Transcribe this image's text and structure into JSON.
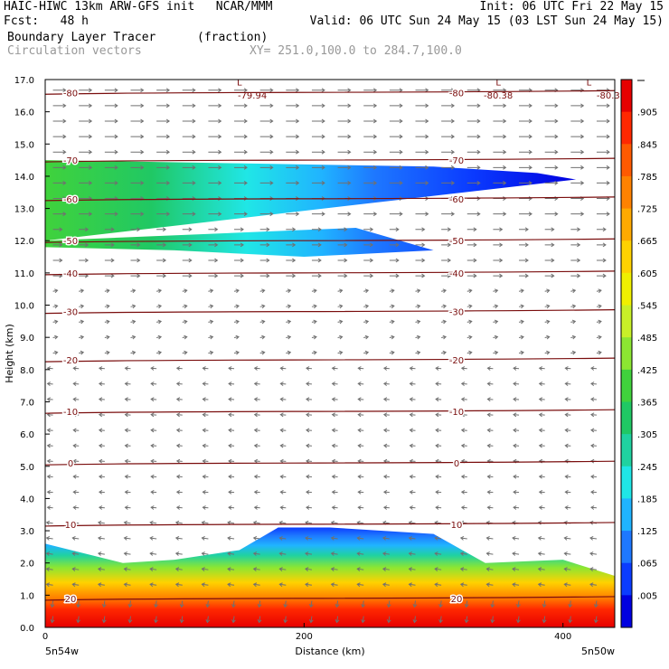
{
  "header": {
    "line1_left": "HAIC-HIWC 13km ARW-GFS init   NCAR/MMM",
    "line1_right": "Init: 06 UTC Fri 22 May 15",
    "line2_left": "Fcst:   48 h",
    "line2_right": "Valid: 06 UTC Sun 24 May 15 (03 LST Sun 24 May 15)",
    "field_name": "Boundary Layer Tracer",
    "field_units": "(fraction)",
    "vector_name": "Circulation vectors",
    "xy_range": "XY= 251.0,100.0 to 284.7,100.0"
  },
  "axes": {
    "ylabel": "Height (km)",
    "xlabel": "Distance (km)",
    "left_endpoint": "5n54w",
    "right_endpoint": "5n50w"
  },
  "colors": {
    "isotherm": "#7a0d0d",
    "vector": "#707070"
  },
  "chart_data": {
    "type": "heatmap",
    "title": "Boundary Layer Tracer (fraction)",
    "xlabel": "Distance (km)",
    "ylabel": "Height (km)",
    "xlim": [
      0,
      440
    ],
    "ylim": [
      0,
      17
    ],
    "x_ticks": [
      "0",
      "200",
      "400"
    ],
    "x_tick_values": [
      0,
      200,
      400
    ],
    "y_ticks": [
      "0.0",
      "1.0",
      "2.0",
      "3.0",
      "4.0",
      "5.0",
      "6.0",
      "7.0",
      "8.0",
      "9.0",
      "10.0",
      "11.0",
      "12.0",
      "13.0",
      "14.0",
      "15.0",
      "16.0",
      "17.0"
    ],
    "colorbar": {
      "labels": [
        ".005",
        ".065",
        ".125",
        ".185",
        ".245",
        ".305",
        ".365",
        ".425",
        ".485",
        ".545",
        ".605",
        ".665",
        ".725",
        ".785",
        ".845",
        ".905"
      ],
      "colors": [
        "#0000e0",
        "#0b3cff",
        "#1e78ff",
        "#20b4ff",
        "#20e6e6",
        "#20d2a0",
        "#20c864",
        "#40d23c",
        "#8ce632",
        "#c8f028",
        "#f0f000",
        "#ffd200",
        "#ffaa00",
        "#ff8200",
        "#ff5a00",
        "#ff2800",
        "#e60000"
      ]
    },
    "tracer_layers": [
      {
        "name": "surface-plume",
        "upper": [
          [
            0,
            2.6
          ],
          [
            20,
            2.4
          ],
          [
            60,
            2.0
          ],
          [
            100,
            2.1
          ],
          [
            150,
            2.4
          ],
          [
            180,
            3.1
          ],
          [
            220,
            3.1
          ],
          [
            300,
            2.9
          ],
          [
            340,
            2.0
          ],
          [
            400,
            2.1
          ],
          [
            440,
            1.6
          ]
        ],
        "lower": [
          [
            0,
            0
          ],
          [
            440,
            0
          ]
        ]
      },
      {
        "name": "upper-plume",
        "upper": [
          [
            0,
            14.5
          ],
          [
            150,
            14.4
          ],
          [
            300,
            14.3
          ],
          [
            380,
            14.1
          ],
          [
            410,
            13.9
          ]
        ],
        "lower": [
          [
            0,
            11.8
          ],
          [
            100,
            11.7
          ],
          [
            200,
            11.5
          ],
          [
            250,
            11.6
          ],
          [
            300,
            11.7
          ],
          [
            240,
            12.4
          ],
          [
            120,
            12.2
          ],
          [
            0,
            12.0
          ]
        ]
      }
    ],
    "isotherms": [
      {
        "value": 20,
        "height": 0.9
      },
      {
        "value": 10,
        "height": 3.2
      },
      {
        "value": 0,
        "height": 5.1
      },
      {
        "value": -10,
        "height": 6.7
      },
      {
        "value": -20,
        "height": 8.3
      },
      {
        "value": -30,
        "height": 9.8
      },
      {
        "value": -40,
        "height": 11.0
      },
      {
        "value": -50,
        "height": 12.0
      },
      {
        "value": -60,
        "height": 13.3
      },
      {
        "value": -70,
        "height": 14.5
      },
      {
        "value": -80,
        "height": 16.6
      }
    ],
    "isotherm_labels": [
      "20",
      "10",
      "0",
      "-10",
      "-20",
      "-30",
      "-40",
      "-50",
      "-60",
      "-70",
      "-80"
    ],
    "extrema_labels": [
      {
        "text": "-79.94",
        "x": 160,
        "y": 16.5
      },
      {
        "text": "-80.38",
        "x": 350,
        "y": 16.5
      },
      {
        "text": "-80.3",
        "x": 435,
        "y": 16.5
      }
    ],
    "low_markers": [
      {
        "text": "L",
        "x": 150,
        "y": 16.9
      },
      {
        "text": "L",
        "x": 350,
        "y": 16.9
      },
      {
        "text": "L",
        "x": 420,
        "y": 16.9
      }
    ],
    "vectors": "circulation vectors shown across grid"
  }
}
